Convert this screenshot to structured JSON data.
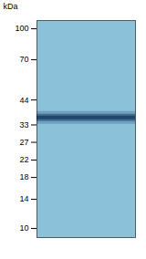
{
  "chart_data": {
    "type": "gel",
    "ylabel": "kDa",
    "log": "y",
    "ylim": [
      9,
      110
    ],
    "yticks": [
      100,
      70,
      44,
      33,
      27,
      22,
      18,
      14,
      10
    ],
    "values": [
      36
    ],
    "color": "#1a4066",
    "tick_labels": "y",
    "grid": false
  }
}
